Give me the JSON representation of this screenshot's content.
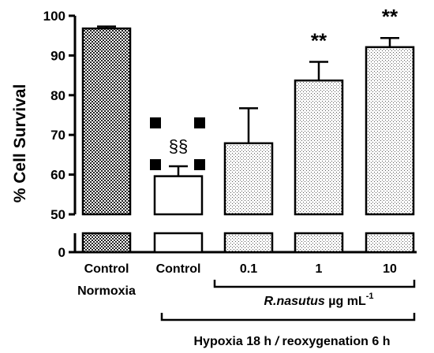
{
  "chart_data": {
    "type": "bar",
    "ylabel": "% Cell Survival",
    "y_axis": {
      "broken": true,
      "lower_segment": [
        0,
        5
      ],
      "upper_segment": [
        50,
        100
      ],
      "ticks": [
        0,
        50,
        60,
        70,
        80,
        90,
        100
      ],
      "tick_labels": [
        "0",
        "50",
        "60",
        "70",
        "80",
        "90",
        "100"
      ]
    },
    "categories": [
      "Control",
      "Control",
      "0.1",
      "1",
      "10"
    ],
    "values": [
      96.8,
      59.6,
      67.9,
      83.7,
      92.1
    ],
    "errors": [
      0.5,
      2.5,
      8.8,
      4.7,
      2.3
    ],
    "bar_patterns": [
      "dense-checker",
      "white",
      "dots",
      "dots",
      "dots"
    ],
    "significance": [
      "",
      "§§",
      "",
      "**",
      "**"
    ],
    "extra_labels": {
      "normoxia": "Normoxia",
      "treatment_prefix": "R.nasutus",
      "treatment_unit": " µg mL",
      "treatment_unit_exp": "-1",
      "hypoxia_prefix": "Hypoxia 18 h ",
      "hypoxia_slash": "/",
      "hypoxia_suffix": " reoxygenation 6 h"
    }
  }
}
